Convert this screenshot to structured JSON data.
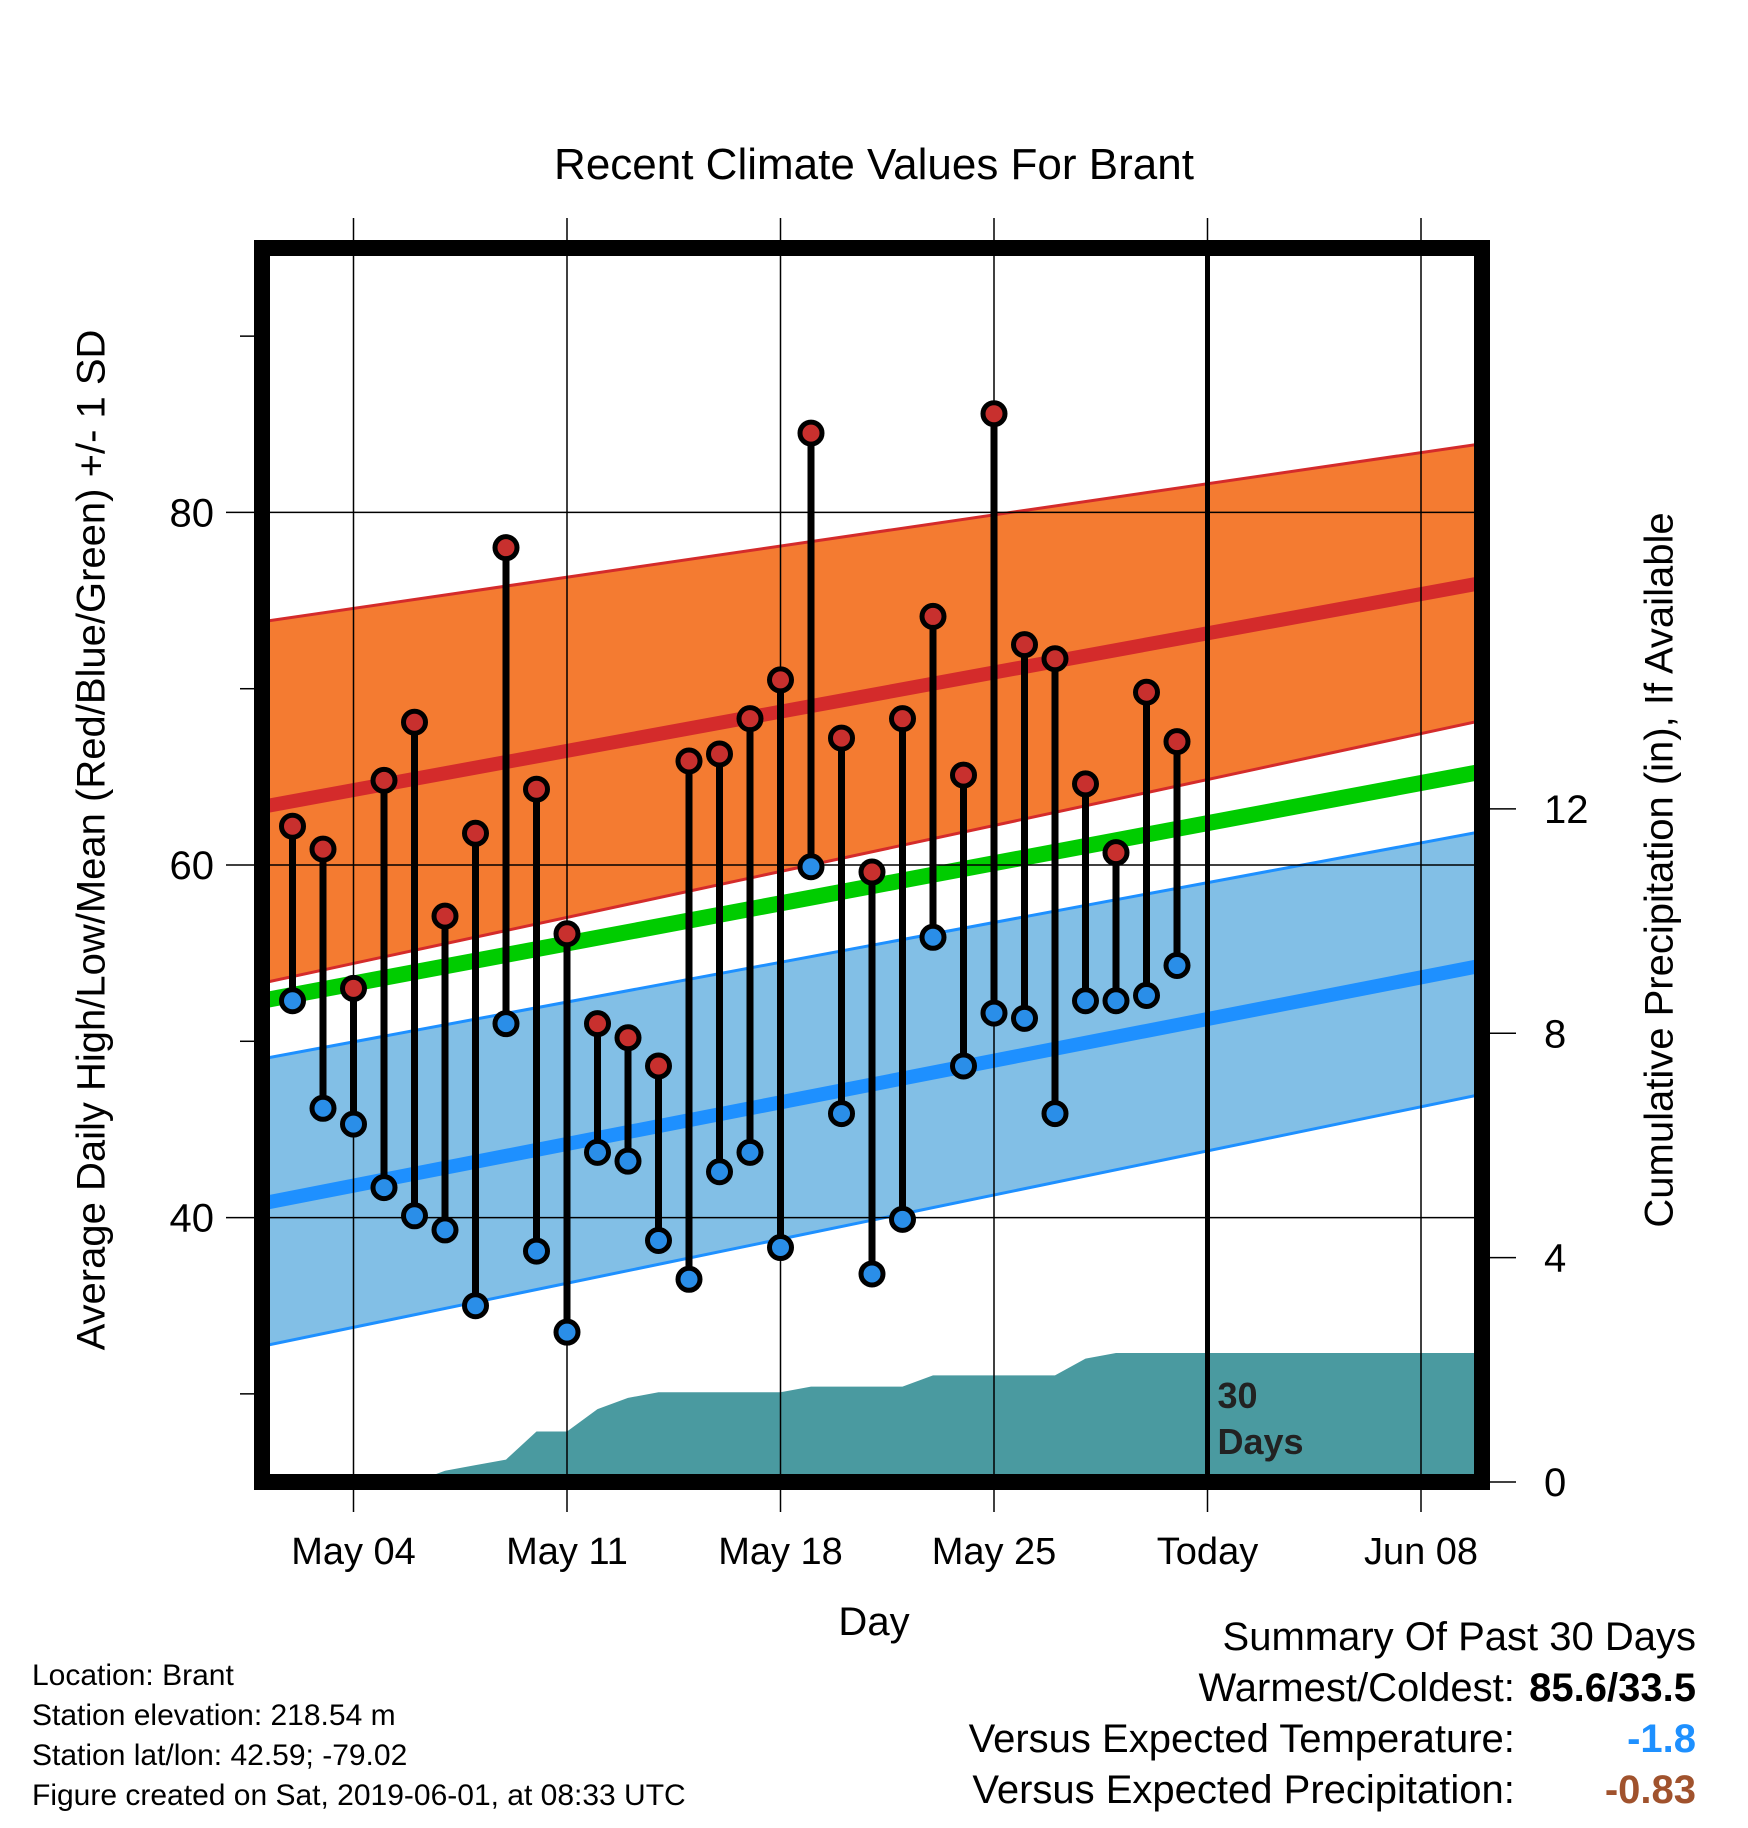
{
  "chart_data": {
    "type": "line",
    "title": "Recent Climate Values For Brant",
    "xlabel": "Day",
    "ylabel_left": "Average Daily High/Low/Mean (Red/Blue/Green) +/- 1 SD",
    "ylabel_right": "Cumulative Precipitation (in), If Available",
    "x_ticks": [
      "May 04",
      "May 11",
      "May 18",
      "May 25",
      "Today",
      "Jun 08"
    ],
    "y_left_ticks": [
      40,
      60,
      80
    ],
    "y_right_ticks": [
      0,
      4,
      8,
      12
    ],
    "y_left_range": [
      25,
      95
    ],
    "y_right_range": [
      0,
      22
    ],
    "x_range": [
      "2019-05-01",
      "2019-06-10"
    ],
    "today": "2019-06-01",
    "dates": [
      "2019-05-02",
      "2019-05-03",
      "2019-05-04",
      "2019-05-05",
      "2019-05-06",
      "2019-05-07",
      "2019-05-08",
      "2019-05-09",
      "2019-05-10",
      "2019-05-11",
      "2019-05-12",
      "2019-05-13",
      "2019-05-14",
      "2019-05-15",
      "2019-05-16",
      "2019-05-17",
      "2019-05-18",
      "2019-05-19",
      "2019-05-20",
      "2019-05-21",
      "2019-05-22",
      "2019-05-23",
      "2019-05-24",
      "2019-05-25",
      "2019-05-26",
      "2019-05-27",
      "2019-05-28",
      "2019-05-29",
      "2019-05-30",
      "2019-05-31"
    ],
    "daily_high": [
      62.2,
      60.9,
      53.0,
      64.8,
      68.1,
      57.1,
      61.8,
      78.0,
      64.3,
      56.1,
      51.0,
      50.2,
      48.6,
      65.9,
      66.3,
      68.3,
      70.5,
      84.5,
      67.2,
      59.6,
      68.3,
      74.1,
      65.1,
      85.6,
      72.5,
      71.7,
      64.6,
      60.7,
      69.8,
      67.0
    ],
    "daily_low": [
      52.3,
      46.2,
      45.3,
      41.7,
      40.1,
      39.3,
      35.0,
      51.0,
      38.1,
      33.5,
      43.7,
      43.2,
      38.7,
      36.5,
      42.6,
      43.7,
      38.3,
      59.9,
      45.9,
      36.8,
      39.9,
      55.9,
      48.6,
      51.6,
      51.3,
      45.9,
      52.3,
      52.3,
      52.6,
      54.3
    ],
    "normal_high": {
      "start": 63.3,
      "end": 76.0
    },
    "normal_high_sd": {
      "start_upper": 73.8,
      "end_upper": 83.9,
      "start_lower": 53.3,
      "end_lower": 68.2
    },
    "normal_low": {
      "start": 40.8,
      "end": 54.3
    },
    "normal_low_sd": {
      "start_upper": 49.0,
      "end_upper": 61.9,
      "start_lower": 32.7,
      "end_lower": 47.0
    },
    "normal_mean": {
      "start": 52.3,
      "end": 65.3
    },
    "cumulative_precip": [
      0.0,
      0.0,
      0.0,
      0.0,
      0.0,
      0.2,
      0.3,
      0.4,
      0.9,
      0.9,
      1.3,
      1.5,
      1.6,
      1.6,
      1.6,
      1.6,
      1.6,
      1.7,
      1.7,
      1.7,
      1.7,
      1.9,
      1.9,
      1.9,
      1.9,
      1.9,
      2.2,
      2.3,
      2.3,
      2.3
    ],
    "precip_label": "30\nDays",
    "colors": {
      "high_band": "#f47b31",
      "high_line": "#d42b2b",
      "low_band": "#82bfe6",
      "low_line": "#1e90ff",
      "mean_line": "#00cc00",
      "precip": "#4a9aa0",
      "high_marker": "#c8302e",
      "low_marker": "#2a8ee8"
    },
    "grid": true
  },
  "info": {
    "location": "Location: Brant",
    "elevation": "Station elevation: 218.54 m",
    "latlon": "Station lat/lon: 42.59; -79.02",
    "created": "Figure created on Sat, 2019-06-01, at 08:33 UTC"
  },
  "summary": {
    "heading": "Summary Of Past 30 Days",
    "warm_cold_label": "Warmest/Coldest:",
    "warm_cold_value": "85.6/33.5",
    "temp_label": "Versus Expected Temperature:",
    "temp_value": "-1.8",
    "precip_label": "Versus Expected Precipitation:",
    "precip_value": "-0.83"
  }
}
